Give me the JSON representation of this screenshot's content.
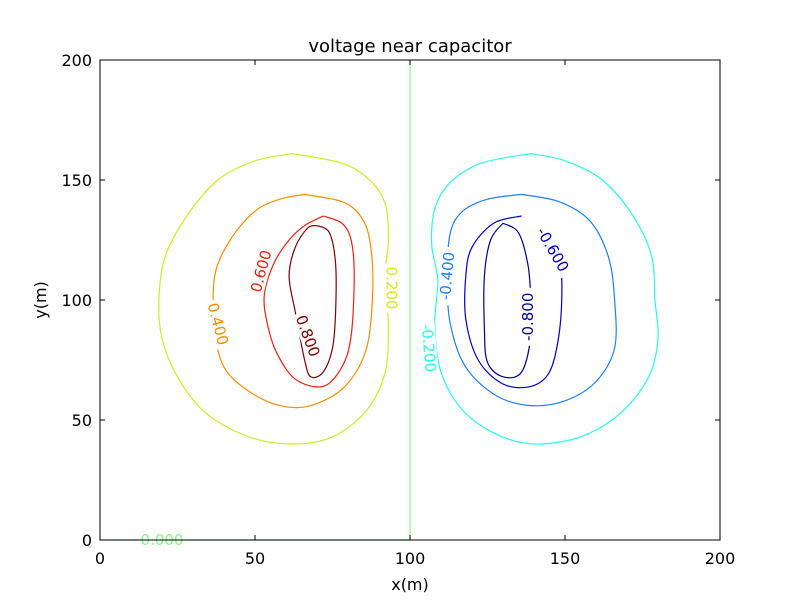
{
  "chart_data": {
    "type": "contour",
    "title": "voltage near capacitor",
    "xlabel": "x(m)",
    "ylabel": "y(m)",
    "xlim": [
      0,
      200
    ],
    "ylim": [
      0,
      200
    ],
    "x_ticks": [
      0,
      50,
      100,
      150,
      200
    ],
    "y_ticks": [
      0,
      50,
      100,
      150,
      200
    ],
    "grid": false,
    "contours": [
      {
        "level": 0.8,
        "label": "0.800",
        "color": "#800000",
        "points": [
          [
            70,
            131
          ],
          [
            74,
            128
          ],
          [
            76,
            115
          ],
          [
            76,
            95
          ],
          [
            75,
            80
          ],
          [
            72,
            70
          ],
          [
            68,
            68
          ],
          [
            66,
            75
          ],
          [
            63,
            95
          ],
          [
            61,
            110
          ],
          [
            63,
            122
          ],
          [
            67,
            130
          ],
          [
            70,
            131
          ]
        ],
        "label_at": [
          67,
          85
        ],
        "label_rotation": 70
      },
      {
        "level": 0.6,
        "label": "0.600",
        "color": "#ee2211",
        "points": [
          [
            72,
            135
          ],
          [
            78,
            132
          ],
          [
            81,
            125
          ],
          [
            82,
            110
          ],
          [
            81,
            85
          ],
          [
            78,
            72
          ],
          [
            72,
            64
          ],
          [
            63,
            67
          ],
          [
            57,
            78
          ],
          [
            54,
            90
          ],
          [
            53,
            102
          ],
          [
            56,
            115
          ],
          [
            61,
            125
          ],
          [
            66,
            131
          ],
          [
            72,
            135
          ]
        ],
        "label_at": [
          52,
          112
        ],
        "label_rotation": -75
      },
      {
        "level": 0.4,
        "label": "0.400",
        "color": "#ff8c00",
        "points": [
          [
            66,
            144
          ],
          [
            78,
            141
          ],
          [
            84,
            135
          ],
          [
            87,
            125
          ],
          [
            88,
            105
          ],
          [
            86,
            80
          ],
          [
            79,
            64
          ],
          [
            68,
            56
          ],
          [
            58,
            56
          ],
          [
            48,
            62
          ],
          [
            40,
            72
          ],
          [
            37,
            88
          ],
          [
            37,
            110
          ],
          [
            42,
            125
          ],
          [
            50,
            137
          ],
          [
            58,
            142
          ],
          [
            66,
            144
          ]
        ],
        "label_at": [
          38,
          90
        ],
        "label_rotation": 75
      },
      {
        "level": 0.2,
        "label": "0.200",
        "color": "#ccee22",
        "points": [
          [
            62,
            161
          ],
          [
            78,
            157
          ],
          [
            87,
            150
          ],
          [
            92,
            140
          ],
          [
            93,
            125
          ],
          [
            92,
            110
          ],
          [
            93,
            90
          ],
          [
            92,
            70
          ],
          [
            86,
            54
          ],
          [
            75,
            43
          ],
          [
            62,
            40
          ],
          [
            48,
            43
          ],
          [
            34,
            53
          ],
          [
            25,
            68
          ],
          [
            20,
            84
          ],
          [
            19,
            100
          ],
          [
            21,
            118
          ],
          [
            28,
            135
          ],
          [
            38,
            150
          ],
          [
            50,
            158
          ],
          [
            62,
            161
          ]
        ],
        "label_at": [
          94,
          105
        ],
        "label_rotation": 90
      },
      {
        "level": -0.8,
        "label": "-0.800",
        "color": "#00008b",
        "points": [
          [
            130,
            132
          ],
          [
            135,
            128
          ],
          [
            138,
            115
          ],
          [
            139,
            100
          ],
          [
            139,
            85
          ],
          [
            136,
            70
          ],
          [
            130,
            68
          ],
          [
            125,
            74
          ],
          [
            124,
            88
          ],
          [
            124,
            110
          ],
          [
            126,
            125
          ],
          [
            130,
            132
          ]
        ],
        "label_at": [
          138,
          93
        ],
        "label_rotation": -90
      },
      {
        "level": -0.6,
        "label": "-0.600",
        "color": "#0000cc",
        "points": [
          [
            136,
            135
          ],
          [
            127,
            132
          ],
          [
            120,
            122
          ],
          [
            118,
            110
          ],
          [
            118,
            92
          ],
          [
            122,
            75
          ],
          [
            130,
            65
          ],
          [
            139,
            64
          ],
          [
            145,
            70
          ],
          [
            148,
            85
          ],
          [
            149,
            105
          ],
          [
            148,
            120
          ],
          [
            145,
            128
          ]
        ],
        "label_at": [
          146,
          121
        ],
        "label_rotation": 60
      },
      {
        "level": -0.4,
        "label": "-0.400",
        "color": "#1e7fff",
        "points": [
          [
            136,
            144
          ],
          [
            125,
            142
          ],
          [
            117,
            137
          ],
          [
            113,
            128
          ],
          [
            112,
            110
          ],
          [
            113,
            90
          ],
          [
            118,
            72
          ],
          [
            128,
            60
          ],
          [
            139,
            56
          ],
          [
            150,
            58
          ],
          [
            160,
            66
          ],
          [
            166,
            80
          ],
          [
            166,
            100
          ],
          [
            164,
            118
          ],
          [
            158,
            133
          ],
          [
            148,
            141
          ],
          [
            136,
            144
          ]
        ],
        "label_at": [
          112,
          110
        ],
        "label_rotation": -85
      },
      {
        "level": -0.2,
        "label": "-0.200",
        "color": "#22ffee",
        "points": [
          [
            139,
            161
          ],
          [
            123,
            157
          ],
          [
            113,
            149
          ],
          [
            108,
            138
          ],
          [
            107,
            123
          ],
          [
            109,
            108
          ],
          [
            108,
            90
          ],
          [
            110,
            70
          ],
          [
            117,
            54
          ],
          [
            128,
            44
          ],
          [
            140,
            40
          ],
          [
            155,
            43
          ],
          [
            168,
            53
          ],
          [
            177,
            68
          ],
          [
            180,
            84
          ],
          [
            179,
            100
          ],
          [
            178,
            118
          ],
          [
            172,
            135
          ],
          [
            162,
            150
          ],
          [
            150,
            158
          ],
          [
            139,
            161
          ]
        ],
        "label_at": [
          106,
          80
        ],
        "label_rotation": 85
      },
      {
        "level": 0.0,
        "label": "0.000",
        "color": "#7fff7f",
        "points": [
          [
            100,
            200
          ],
          [
            100,
            155
          ],
          [
            100,
            100
          ],
          [
            100,
            45
          ],
          [
            100,
            0
          ]
        ],
        "label_at": [
          20,
          0
        ],
        "label_rotation": 0
      }
    ],
    "zero_baseline": {
      "points": [
        [
          0,
          0
        ],
        [
          100,
          0
        ]
      ],
      "color": "#7fff7f"
    }
  }
}
